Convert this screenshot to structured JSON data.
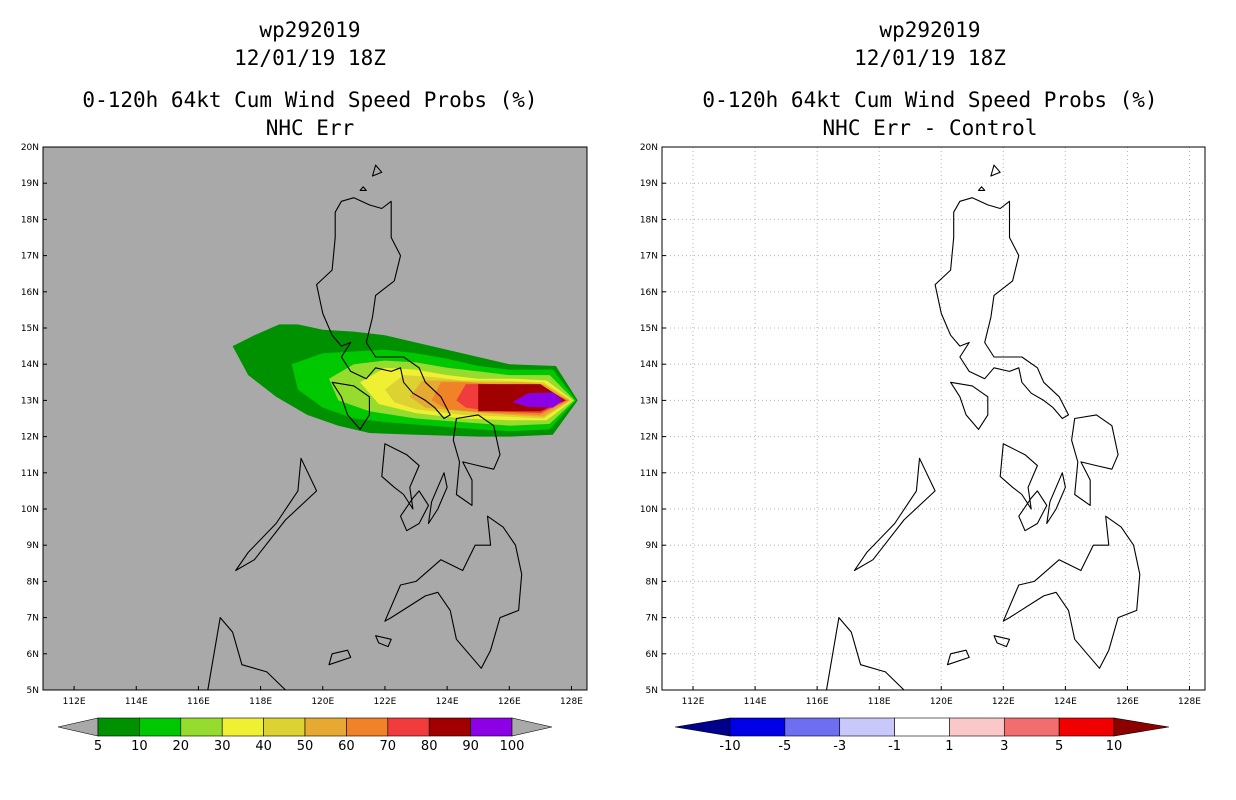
{
  "chart_data": [
    {
      "type": "heatmap",
      "panel": "left",
      "title_lines": [
        "wp292019",
        "12/01/19 18Z",
        "0-120h 64kt Cum Wind Speed Probs (%)",
        "NHC Err"
      ],
      "background_color": "#a9a9a9",
      "xlim": [
        111,
        128.5
      ],
      "ylim": [
        5,
        20
      ],
      "x_ticks": [
        112,
        114,
        116,
        118,
        120,
        122,
        124,
        126,
        128
      ],
      "x_tick_labels": [
        "112E",
        "114E",
        "116E",
        "118E",
        "120E",
        "122E",
        "124E",
        "126E",
        "128E"
      ],
      "y_ticks": [
        5,
        6,
        7,
        8,
        9,
        10,
        11,
        12,
        13,
        14,
        15,
        16,
        17,
        18,
        19,
        20
      ],
      "y_tick_labels": [
        "5N",
        "6N",
        "7N",
        "8N",
        "9N",
        "10N",
        "11N",
        "12N",
        "13N",
        "14N",
        "15N",
        "16N",
        "17N",
        "18N",
        "19N",
        "20N"
      ],
      "grid": false,
      "colorbar": {
        "labels": [
          "5",
          "10",
          "20",
          "30",
          "40",
          "50",
          "60",
          "70",
          "80",
          "90",
          "100"
        ],
        "colors": [
          "#009100",
          "#00c800",
          "#96dc2e",
          "#f0f032",
          "#dcd232",
          "#e6aa32",
          "#f08228",
          "#f03c3c",
          "#a00000",
          "#8c00e6"
        ],
        "extend_colors": [
          "#a9a9a9",
          "#a9a9a9"
        ]
      },
      "probability_contours": [
        {
          "level": 5,
          "color": "#009100",
          "lonlat": [
            [
              117.1,
              14.5
            ],
            [
              117.8,
              14.8
            ],
            [
              118.6,
              15.1
            ],
            [
              119.2,
              15.1
            ],
            [
              120.0,
              14.95
            ],
            [
              121.0,
              14.9
            ],
            [
              122.0,
              14.8
            ],
            [
              123.0,
              14.6
            ],
            [
              124.0,
              14.4
            ],
            [
              125.0,
              14.2
            ],
            [
              126.0,
              14.0
            ],
            [
              127.5,
              13.95
            ],
            [
              128.2,
              13.0
            ],
            [
              127.4,
              12.05
            ],
            [
              126.0,
              12.0
            ],
            [
              125.0,
              12.0
            ],
            [
              123.0,
              12.05
            ],
            [
              121.5,
              12.1
            ],
            [
              120.5,
              12.3
            ],
            [
              119.5,
              12.6
            ],
            [
              118.5,
              13.1
            ],
            [
              117.6,
              13.7
            ]
          ]
        },
        {
          "level": 10,
          "color": "#00c800",
          "lonlat": [
            [
              119.0,
              14.0
            ],
            [
              120.0,
              14.3
            ],
            [
              121.0,
              14.35
            ],
            [
              122.0,
              14.4
            ],
            [
              123.0,
              14.3
            ],
            [
              124.0,
              14.15
            ],
            [
              125.0,
              13.95
            ],
            [
              126.0,
              13.85
            ],
            [
              127.4,
              13.85
            ],
            [
              128.15,
              13.0
            ],
            [
              127.3,
              12.2
            ],
            [
              126.0,
              12.15
            ],
            [
              125.0,
              12.2
            ],
            [
              123.5,
              12.3
            ],
            [
              122.0,
              12.4
            ],
            [
              121.0,
              12.5
            ],
            [
              120.0,
              12.8
            ],
            [
              119.2,
              13.3
            ]
          ]
        },
        {
          "level": 20,
          "color": "#96dc2e",
          "lonlat": [
            [
              120.2,
              13.6
            ],
            [
              121.0,
              14.0
            ],
            [
              122.0,
              14.1
            ],
            [
              123.0,
              14.05
            ],
            [
              124.0,
              13.9
            ],
            [
              125.0,
              13.8
            ],
            [
              126.0,
              13.7
            ],
            [
              127.3,
              13.7
            ],
            [
              128.1,
              13.0
            ],
            [
              127.3,
              12.35
            ],
            [
              126.0,
              12.3
            ],
            [
              124.5,
              12.4
            ],
            [
              123.0,
              12.5
            ],
            [
              121.5,
              12.7
            ],
            [
              120.5,
              13.0
            ]
          ]
        },
        {
          "level": 30,
          "color": "#f0f032",
          "lonlat": [
            [
              121.2,
              13.5
            ],
            [
              122.0,
              13.9
            ],
            [
              123.0,
              13.85
            ],
            [
              124.0,
              13.7
            ],
            [
              125.0,
              13.6
            ],
            [
              126.2,
              13.6
            ],
            [
              127.2,
              13.55
            ],
            [
              128.05,
              13.0
            ],
            [
              127.2,
              12.45
            ],
            [
              126.0,
              12.45
            ],
            [
              124.5,
              12.5
            ],
            [
              123.0,
              12.65
            ],
            [
              121.8,
              12.9
            ]
          ]
        },
        {
          "level": 40,
          "color": "#dcd232",
          "lonlat": [
            [
              122.0,
              13.3
            ],
            [
              122.6,
              13.7
            ],
            [
              123.5,
              13.65
            ],
            [
              124.5,
              13.55
            ],
            [
              125.5,
              13.55
            ],
            [
              127.1,
              13.5
            ],
            [
              128.0,
              13.0
            ],
            [
              127.1,
              12.5
            ],
            [
              126.0,
              12.55
            ],
            [
              124.5,
              12.6
            ],
            [
              123.0,
              12.75
            ],
            [
              122.3,
              12.95
            ]
          ]
        },
        {
          "level": 50,
          "color": "#e6aa32",
          "lonlat": [
            [
              122.8,
              13.1
            ],
            [
              123.2,
              13.55
            ],
            [
              124.0,
              13.55
            ],
            [
              125.0,
              13.5
            ],
            [
              126.5,
              13.5
            ],
            [
              127.1,
              13.45
            ],
            [
              127.95,
              13.0
            ],
            [
              127.1,
              12.55
            ],
            [
              126.0,
              12.6
            ],
            [
              124.5,
              12.7
            ],
            [
              123.3,
              12.8
            ]
          ]
        },
        {
          "level": 60,
          "color": "#f08228",
          "lonlat": [
            [
              123.5,
              13.0
            ],
            [
              123.8,
              13.5
            ],
            [
              124.5,
              13.5
            ],
            [
              125.5,
              13.45
            ],
            [
              127.0,
              13.4
            ],
            [
              127.9,
              13.0
            ],
            [
              127.0,
              12.6
            ],
            [
              125.5,
              12.65
            ],
            [
              124.0,
              12.75
            ]
          ]
        },
        {
          "level": 70,
          "color": "#f03c3c",
          "lonlat": [
            [
              124.3,
              13.0
            ],
            [
              124.6,
              13.45
            ],
            [
              125.5,
              13.45
            ],
            [
              127.0,
              13.4
            ],
            [
              127.85,
              13.0
            ],
            [
              127.0,
              12.65
            ],
            [
              125.5,
              12.7
            ],
            [
              124.6,
              12.8
            ]
          ]
        },
        {
          "level": 80,
          "color": "#a00000",
          "lonlat": [
            [
              125.0,
              13.45
            ],
            [
              127.0,
              13.45
            ],
            [
              127.8,
              13.0
            ],
            [
              127.0,
              12.7
            ],
            [
              125.0,
              12.7
            ]
          ]
        },
        {
          "level": 90,
          "color": "#8c00e6",
          "lonlat": [
            [
              126.1,
              12.95
            ],
            [
              126.6,
              13.2
            ],
            [
              127.4,
              13.22
            ],
            [
              127.72,
              13.0
            ],
            [
              127.4,
              12.8
            ],
            [
              126.6,
              12.82
            ]
          ]
        }
      ]
    },
    {
      "type": "heatmap",
      "panel": "right",
      "title_lines": [
        "wp292019",
        "12/01/19 18Z",
        "0-120h 64kt Cum Wind Speed Probs (%)",
        "NHC Err - Control"
      ],
      "background_color": "#ffffff",
      "xlim": [
        111,
        128.5
      ],
      "ylim": [
        5,
        20
      ],
      "x_ticks": [
        112,
        114,
        116,
        118,
        120,
        122,
        124,
        126,
        128
      ],
      "x_tick_labels": [
        "112E",
        "114E",
        "116E",
        "118E",
        "120E",
        "122E",
        "124E",
        "126E",
        "128E"
      ],
      "y_ticks": [
        5,
        6,
        7,
        8,
        9,
        10,
        11,
        12,
        13,
        14,
        15,
        16,
        17,
        18,
        19,
        20
      ],
      "y_tick_labels": [
        "5N",
        "6N",
        "7N",
        "8N",
        "9N",
        "10N",
        "11N",
        "12N",
        "13N",
        "14N",
        "15N",
        "16N",
        "17N",
        "18N",
        "19N",
        "20N"
      ],
      "grid": true,
      "colorbar": {
        "labels": [
          "-10",
          "-5",
          "-3",
          "-1",
          "1",
          "3",
          "5",
          "10"
        ],
        "colors": [
          "#0000e6",
          "#6e6ef0",
          "#c8c8fa",
          "#ffffff",
          "#fac8c8",
          "#f06e6e",
          "#f00000"
        ],
        "extend_colors": [
          "#00008c",
          "#8c0000"
        ]
      },
      "difference_values": "all within -1 to 1 (no shading)"
    }
  ],
  "coastlines": [
    [
      [
        120.6,
        18.5
      ],
      [
        121.0,
        18.6
      ],
      [
        121.5,
        18.4
      ],
      [
        121.9,
        18.3
      ],
      [
        122.2,
        18.5
      ],
      [
        122.2,
        17.5
      ],
      [
        122.5,
        17.0
      ],
      [
        122.3,
        16.3
      ],
      [
        121.7,
        15.9
      ],
      [
        121.6,
        15.3
      ],
      [
        121.4,
        14.6
      ],
      [
        121.7,
        14.2
      ],
      [
        122.2,
        14.2
      ],
      [
        122.6,
        14.2
      ],
      [
        123.1,
        13.9
      ],
      [
        123.3,
        13.5
      ],
      [
        123.8,
        13.1
      ],
      [
        124.1,
        12.6
      ],
      [
        123.9,
        12.5
      ],
      [
        123.6,
        12.8
      ],
      [
        123.3,
        13.0
      ],
      [
        122.9,
        13.2
      ],
      [
        122.6,
        13.5
      ],
      [
        122.5,
        13.9
      ],
      [
        122.2,
        13.8
      ],
      [
        121.7,
        13.9
      ],
      [
        121.4,
        13.6
      ],
      [
        120.9,
        13.8
      ],
      [
        120.6,
        14.2
      ],
      [
        120.9,
        14.6
      ],
      [
        120.6,
        14.5
      ],
      [
        120.3,
        14.8
      ],
      [
        120.0,
        15.4
      ],
      [
        119.8,
        16.2
      ],
      [
        120.3,
        16.6
      ],
      [
        120.4,
        17.5
      ],
      [
        120.4,
        18.2
      ],
      [
        120.6,
        18.5
      ]
    ],
    [
      [
        120.3,
        13.5
      ],
      [
        121.0,
        13.4
      ],
      [
        121.5,
        13.1
      ],
      [
        121.5,
        12.6
      ],
      [
        121.2,
        12.2
      ],
      [
        120.8,
        12.6
      ],
      [
        120.6,
        13.1
      ],
      [
        120.3,
        13.5
      ]
    ],
    [
      [
        124.3,
        12.5
      ],
      [
        125.0,
        12.6
      ],
      [
        125.5,
        12.3
      ],
      [
        125.7,
        11.5
      ],
      [
        125.5,
        11.1
      ],
      [
        125.0,
        11.2
      ],
      [
        124.5,
        11.3
      ],
      [
        124.8,
        10.8
      ],
      [
        124.8,
        10.1
      ],
      [
        124.3,
        10.4
      ],
      [
        124.4,
        11.3
      ],
      [
        124.2,
        11.9
      ],
      [
        124.3,
        12.5
      ]
    ],
    [
      [
        122.0,
        11.8
      ],
      [
        122.7,
        11.5
      ],
      [
        123.1,
        11.2
      ],
      [
        122.8,
        10.6
      ],
      [
        122.9,
        10.0
      ],
      [
        122.6,
        10.4
      ],
      [
        122.3,
        10.6
      ],
      [
        121.9,
        10.9
      ],
      [
        122.0,
        11.8
      ]
    ],
    [
      [
        123.1,
        10.5
      ],
      [
        123.4,
        10.1
      ],
      [
        123.1,
        9.6
      ],
      [
        122.7,
        9.4
      ],
      [
        122.5,
        9.8
      ],
      [
        122.9,
        10.3
      ],
      [
        123.1,
        10.5
      ]
    ],
    [
      [
        123.9,
        11.0
      ],
      [
        124.0,
        10.6
      ],
      [
        123.7,
        10.0
      ],
      [
        123.4,
        9.6
      ],
      [
        123.5,
        10.2
      ],
      [
        123.9,
        11.0
      ]
    ],
    [
      [
        119.3,
        11.4
      ],
      [
        119.8,
        10.5
      ],
      [
        118.8,
        9.7
      ],
      [
        117.8,
        8.6
      ],
      [
        117.2,
        8.3
      ],
      [
        117.6,
        8.8
      ],
      [
        118.5,
        9.6
      ],
      [
        119.2,
        10.5
      ],
      [
        119.3,
        11.4
      ]
    ],
    [
      [
        125.3,
        9.8
      ],
      [
        125.8,
        9.5
      ],
      [
        126.2,
        9.0
      ],
      [
        126.4,
        8.2
      ],
      [
        126.3,
        7.2
      ],
      [
        125.7,
        7.0
      ],
      [
        125.4,
        6.1
      ],
      [
        125.1,
        5.6
      ],
      [
        124.3,
        6.4
      ],
      [
        124.1,
        7.2
      ],
      [
        123.7,
        7.7
      ],
      [
        123.3,
        7.6
      ],
      [
        122.2,
        7.0
      ],
      [
        122.0,
        6.9
      ],
      [
        122.5,
        7.9
      ],
      [
        123.0,
        8.0
      ],
      [
        123.8,
        8.6
      ],
      [
        124.5,
        8.3
      ],
      [
        124.9,
        9.0
      ],
      [
        125.4,
        9.0
      ],
      [
        125.3,
        9.8
      ]
    ],
    [
      [
        121.7,
        6.5
      ],
      [
        122.2,
        6.4
      ],
      [
        122.1,
        6.2
      ],
      [
        121.8,
        6.3
      ],
      [
        121.7,
        6.5
      ]
    ],
    [
      [
        120.2,
        5.7
      ],
      [
        120.9,
        5.9
      ],
      [
        120.8,
        6.1
      ],
      [
        120.3,
        6.0
      ],
      [
        120.2,
        5.7
      ]
    ],
    [
      [
        116.7,
        7.0
      ],
      [
        117.1,
        6.6
      ],
      [
        117.4,
        5.7
      ],
      [
        118.2,
        5.5
      ],
      [
        118.8,
        5.0
      ],
      [
        116.3,
        5.0
      ],
      [
        116.7,
        7.0
      ]
    ],
    [
      [
        121.7,
        19.5
      ],
      [
        121.9,
        19.3
      ],
      [
        121.6,
        19.2
      ],
      [
        121.7,
        19.5
      ]
    ],
    [
      [
        121.3,
        18.9
      ],
      [
        121.4,
        18.8
      ],
      [
        121.2,
        18.8
      ],
      [
        121.3,
        18.9
      ]
    ]
  ]
}
